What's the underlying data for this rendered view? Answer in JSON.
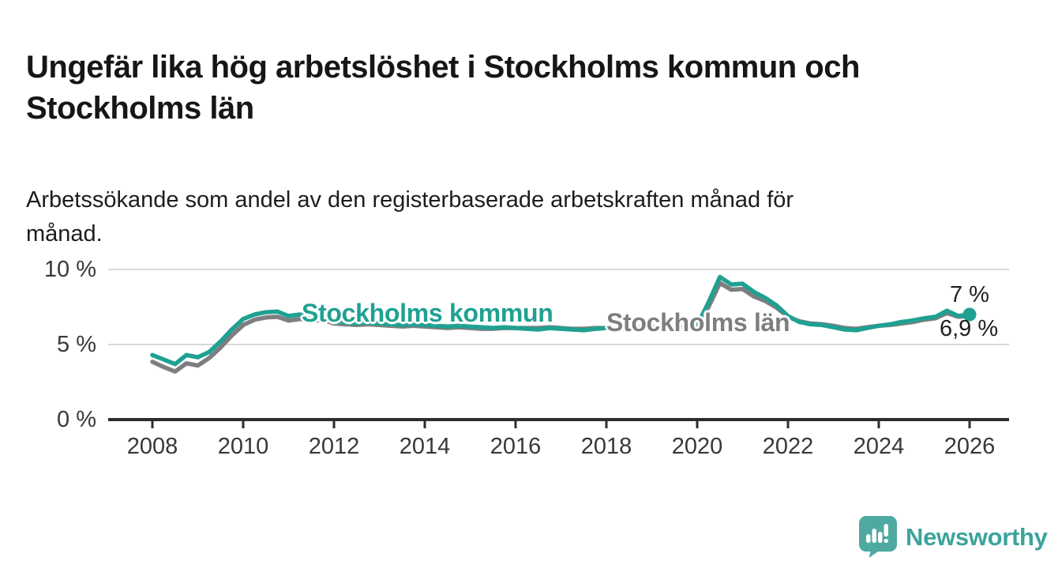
{
  "page": {
    "background": "#ffffff"
  },
  "header": {
    "title_lines": [
      "Ungefär lika hög arbetslöshet i Stockholms kommun och",
      "Stockholms län"
    ],
    "subtitle_lines": [
      "Arbetssökande som andel av den registerbaserade arbetskraften månad för",
      "månad."
    ]
  },
  "chart_data": {
    "type": "line",
    "title": "Ungefär lika hög arbetslöshet i Stockholms kommun och Stockholms län",
    "subtitle": "Arbetssökande som andel av den registerbaserade arbetskraften månad för månad.",
    "unit": "%",
    "grid": "horizontal",
    "x_start": 2008.0,
    "x_step": 0.25,
    "x_end": 2026.0,
    "ylim": [
      0,
      10.5
    ],
    "legend_position": "inline-labels",
    "series": [
      {
        "name": "Stockholms kommun",
        "color": "#1fa192",
        "end_label": "7 %",
        "end_value": 7.0,
        "values": [
          4.3,
          4.0,
          3.7,
          4.3,
          4.15,
          4.5,
          5.2,
          6.0,
          6.7,
          7.0,
          7.15,
          7.2,
          6.9,
          7.0,
          6.85,
          6.9,
          6.55,
          6.45,
          6.4,
          6.45,
          6.4,
          6.35,
          6.3,
          6.35,
          6.3,
          6.25,
          6.2,
          6.25,
          6.2,
          6.15,
          6.1,
          6.15,
          6.1,
          6.05,
          6.0,
          6.1,
          6.05,
          6.0,
          5.95,
          6.05,
          6.1,
          6.05,
          6.1,
          6.1,
          6.15,
          6.1,
          6.15,
          6.2,
          6.3,
          7.8,
          9.5,
          9.0,
          9.05,
          8.5,
          8.1,
          7.6,
          6.9,
          6.5,
          6.35,
          6.3,
          6.15,
          6.0,
          5.95,
          6.1,
          6.25,
          6.35,
          6.5,
          6.6,
          6.75,
          6.85,
          7.25,
          6.9,
          7.0
        ]
      },
      {
        "name": "Stockholms län",
        "color": "#7e7e80",
        "end_label": "6,9 %",
        "end_value": 6.9,
        "values": [
          3.85,
          3.5,
          3.2,
          3.75,
          3.6,
          4.1,
          4.8,
          5.6,
          6.3,
          6.65,
          6.8,
          6.85,
          6.6,
          6.7,
          6.55,
          6.65,
          6.4,
          6.35,
          6.3,
          6.35,
          6.3,
          6.25,
          6.2,
          6.25,
          6.2,
          6.15,
          6.1,
          6.15,
          6.1,
          6.05,
          6.05,
          6.1,
          6.1,
          6.1,
          6.1,
          6.15,
          6.1,
          6.05,
          6.05,
          6.1,
          6.1,
          6.05,
          6.1,
          6.1,
          6.15,
          6.1,
          6.15,
          6.2,
          6.3,
          7.5,
          9.1,
          8.65,
          8.7,
          8.2,
          7.9,
          7.45,
          6.85,
          6.55,
          6.4,
          6.35,
          6.25,
          6.1,
          6.05,
          6.15,
          6.25,
          6.3,
          6.4,
          6.5,
          6.65,
          6.75,
          7.1,
          6.85,
          6.9
        ]
      }
    ],
    "x_axis": {
      "ticks": [
        2008,
        2010,
        2012,
        2014,
        2016,
        2018,
        2020,
        2022,
        2024,
        2026
      ],
      "labels": [
        "2008",
        "2010",
        "2012",
        "2014",
        "2016",
        "2018",
        "2020",
        "2022",
        "2024",
        "2026"
      ]
    },
    "y_axis": {
      "ticks": [
        {
          "label": "10 %",
          "value": 10
        },
        {
          "label": "5 %",
          "value": 5
        },
        {
          "label": "0 %",
          "value": 0
        }
      ]
    },
    "colors": {
      "gridline": "#d8d8d8",
      "axis": "#2d2d2d"
    }
  },
  "branding": {
    "logo_text": "Newsworthy",
    "logo_text_color": "#3ba49c",
    "icon_color": "#4ea9a1",
    "icon": "newsworthy-speech-bubble-bar-chart-icon"
  }
}
